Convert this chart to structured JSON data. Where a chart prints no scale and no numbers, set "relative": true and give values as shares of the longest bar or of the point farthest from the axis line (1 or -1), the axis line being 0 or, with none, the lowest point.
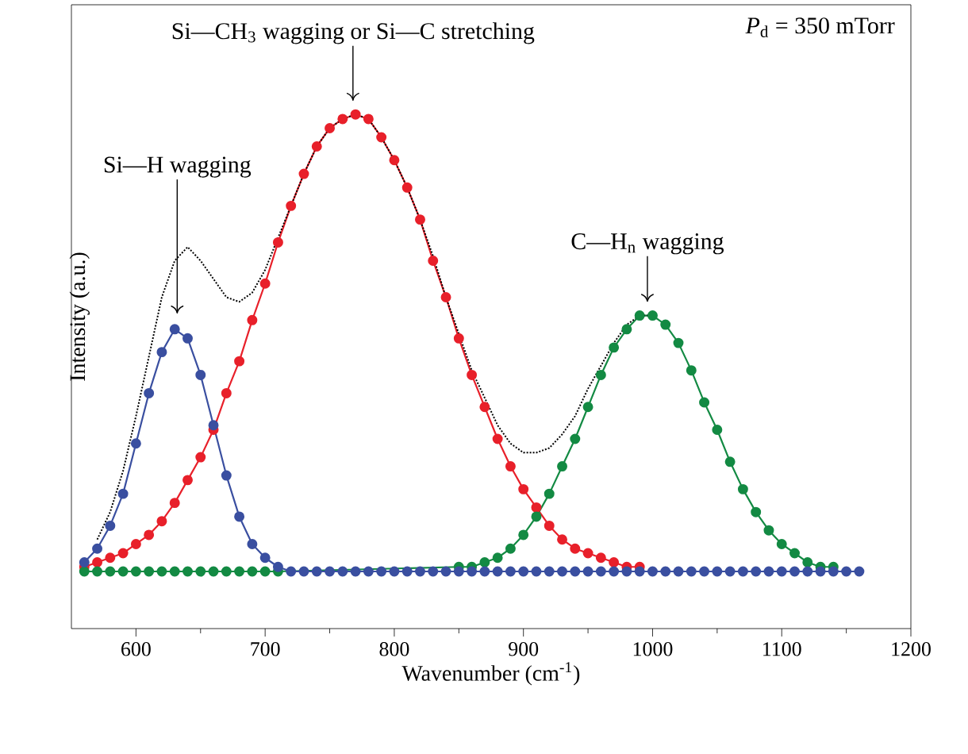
{
  "chart_data": {
    "type": "line",
    "relative": true,
    "xlabel": "Wavenumber (cm$^{-1}$)",
    "ylabel": "Intensity (a.u.)",
    "xlim": [
      550,
      1200
    ],
    "xticks": [
      600,
      700,
      800,
      900,
      1000,
      1100,
      1200
    ],
    "marker": "circle",
    "x": [
      560,
      570,
      580,
      590,
      600,
      610,
      620,
      630,
      640,
      650,
      660,
      670,
      680,
      690,
      700,
      710,
      720,
      730,
      740,
      750,
      760,
      770,
      780,
      790,
      800,
      810,
      820,
      830,
      840,
      850,
      860,
      870,
      880,
      890,
      900,
      910,
      920,
      930,
      940,
      950,
      960,
      970,
      980,
      990,
      1000,
      1010,
      1020,
      1030,
      1040,
      1050,
      1060,
      1070,
      1080,
      1090,
      1100,
      1110,
      1120,
      1130,
      1140,
      1150,
      1160
    ],
    "series": [
      {
        "type": "line",
        "line_style": "dotted",
        "marker": "none",
        "color": "#000000",
        "x": [
          570,
          580,
          590,
          600,
          610,
          620,
          630,
          640,
          650,
          660,
          670,
          680,
          690,
          700,
          710,
          720,
          730,
          740,
          750,
          760,
          770,
          780,
          790,
          800,
          810,
          820,
          830,
          840,
          850,
          860,
          870,
          880,
          890,
          900,
          910,
          920,
          930,
          940,
          950,
          960,
          970,
          980,
          990,
          1000
        ],
        "values": [
          0.07,
          0.13,
          0.22,
          0.34,
          0.47,
          0.6,
          0.68,
          0.71,
          0.68,
          0.64,
          0.6,
          0.59,
          0.61,
          0.66,
          0.73,
          0.8,
          0.87,
          0.93,
          0.97,
          0.99,
          1.0,
          0.99,
          0.95,
          0.9,
          0.84,
          0.77,
          0.69,
          0.6,
          0.52,
          0.44,
          0.38,
          0.32,
          0.28,
          0.26,
          0.26,
          0.27,
          0.3,
          0.34,
          0.4,
          0.45,
          0.5,
          0.54,
          0.56,
          0.56
        ]
      },
      {
        "color": "#e8202a",
        "values": [
          0.01,
          0.02,
          0.03,
          0.04,
          0.06,
          0.08,
          0.11,
          0.15,
          0.2,
          0.25,
          0.31,
          0.39,
          0.46,
          0.55,
          0.63,
          0.72,
          0.8,
          0.87,
          0.93,
          0.97,
          0.99,
          1.0,
          0.99,
          0.95,
          0.9,
          0.84,
          0.77,
          0.68,
          0.6,
          0.51,
          0.43,
          0.36,
          0.29,
          0.23,
          0.18,
          0.14,
          0.1,
          0.07,
          0.05,
          0.04,
          0.03,
          0.02,
          0.01,
          0.01,
          null,
          null,
          null,
          null,
          null,
          null,
          null,
          null,
          null,
          null,
          null,
          null,
          null,
          null,
          null,
          null,
          null
        ]
      },
      {
        "color": "#138a43",
        "values": [
          0,
          0,
          0,
          0,
          0,
          0,
          0,
          0,
          0,
          0,
          0,
          0,
          0,
          0,
          0,
          0,
          null,
          null,
          null,
          null,
          null,
          null,
          null,
          null,
          null,
          null,
          null,
          null,
          null,
          0.01,
          0.01,
          0.02,
          0.03,
          0.05,
          0.08,
          0.12,
          0.17,
          0.23,
          0.29,
          0.36,
          0.43,
          0.49,
          0.53,
          0.56,
          0.56,
          0.54,
          0.5,
          0.44,
          0.37,
          0.31,
          0.24,
          0.18,
          0.13,
          0.09,
          0.06,
          0.04,
          0.02,
          0.01,
          0.01,
          null,
          null
        ]
      },
      {
        "color": "#3a4fa0",
        "values": [
          0.02,
          0.05,
          0.1,
          0.17,
          0.28,
          0.39,
          0.48,
          0.53,
          0.51,
          0.43,
          0.32,
          0.21,
          0.12,
          0.06,
          0.03,
          0.01,
          0,
          0,
          0,
          0,
          0,
          0,
          0,
          0,
          0,
          0,
          0,
          0,
          0,
          0,
          0,
          0,
          0,
          0,
          0,
          0,
          0,
          0,
          0,
          0,
          0,
          0,
          0,
          0,
          0,
          0,
          0,
          0,
          0,
          0,
          0,
          0,
          0,
          0,
          0,
          0,
          0,
          0,
          0,
          0,
          0
        ]
      }
    ],
    "annotations": [
      {
        "text": "Si—CH$_{3}$ wagging or Si—C stretching",
        "x": 768,
        "y": 1.0
      },
      "Si—H wagging",
      {
        "text": "C—H$_{n}$ wagging",
        "x": 996,
        "y": 0.56
      },
      "*P*$_{d}$ = 350 mTorr"
    ]
  }
}
